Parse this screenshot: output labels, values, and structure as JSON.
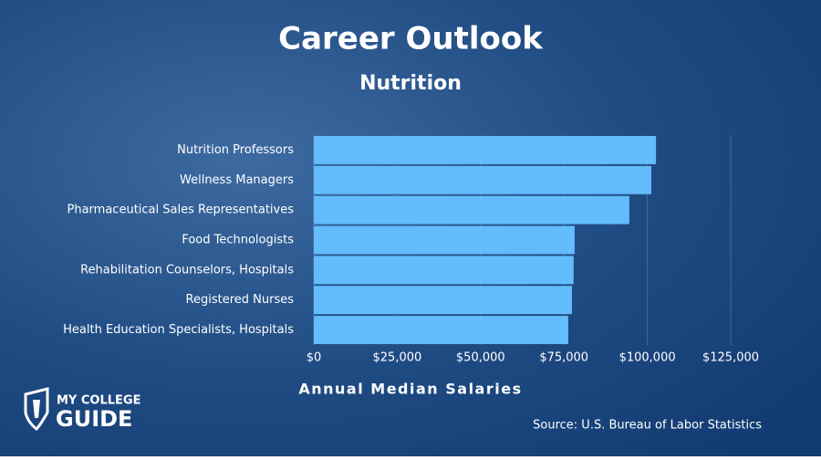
{
  "chart_data": {
    "type": "barh",
    "title": "Career Outlook",
    "subtitle": "Nutrition",
    "categories": [
      "Nutrition Professors",
      "Wellness Managers",
      "Pharmaceutical Sales Representatives",
      "Food Technologists",
      "Rehabilitation Counselors, Hospitals",
      "Registered Nurses",
      "Health Education Specialists, Hospitals"
    ],
    "values": [
      102600,
      101200,
      94600,
      78200,
      77900,
      77400,
      76300
    ],
    "color": "#63bcfb",
    "xlim": [
      0,
      125000
    ],
    "xticks": [
      {
        "value": 0,
        "label": "$0"
      },
      {
        "value": 25000,
        "label": "$25,000"
      },
      {
        "value": 50000,
        "label": "$50,000"
      },
      {
        "value": 75000,
        "label": "$75,000"
      },
      {
        "value": 100000,
        "label": "$100,000"
      },
      {
        "value": 125000,
        "label": "$125,000"
      }
    ],
    "xlabel": "Annual Median Salaries",
    "grid": true,
    "source": "Source: U.S. Bureau of Labor Statistics"
  },
  "logo": {
    "line1": "MY COLLEGE",
    "line2": "GUIDE"
  }
}
